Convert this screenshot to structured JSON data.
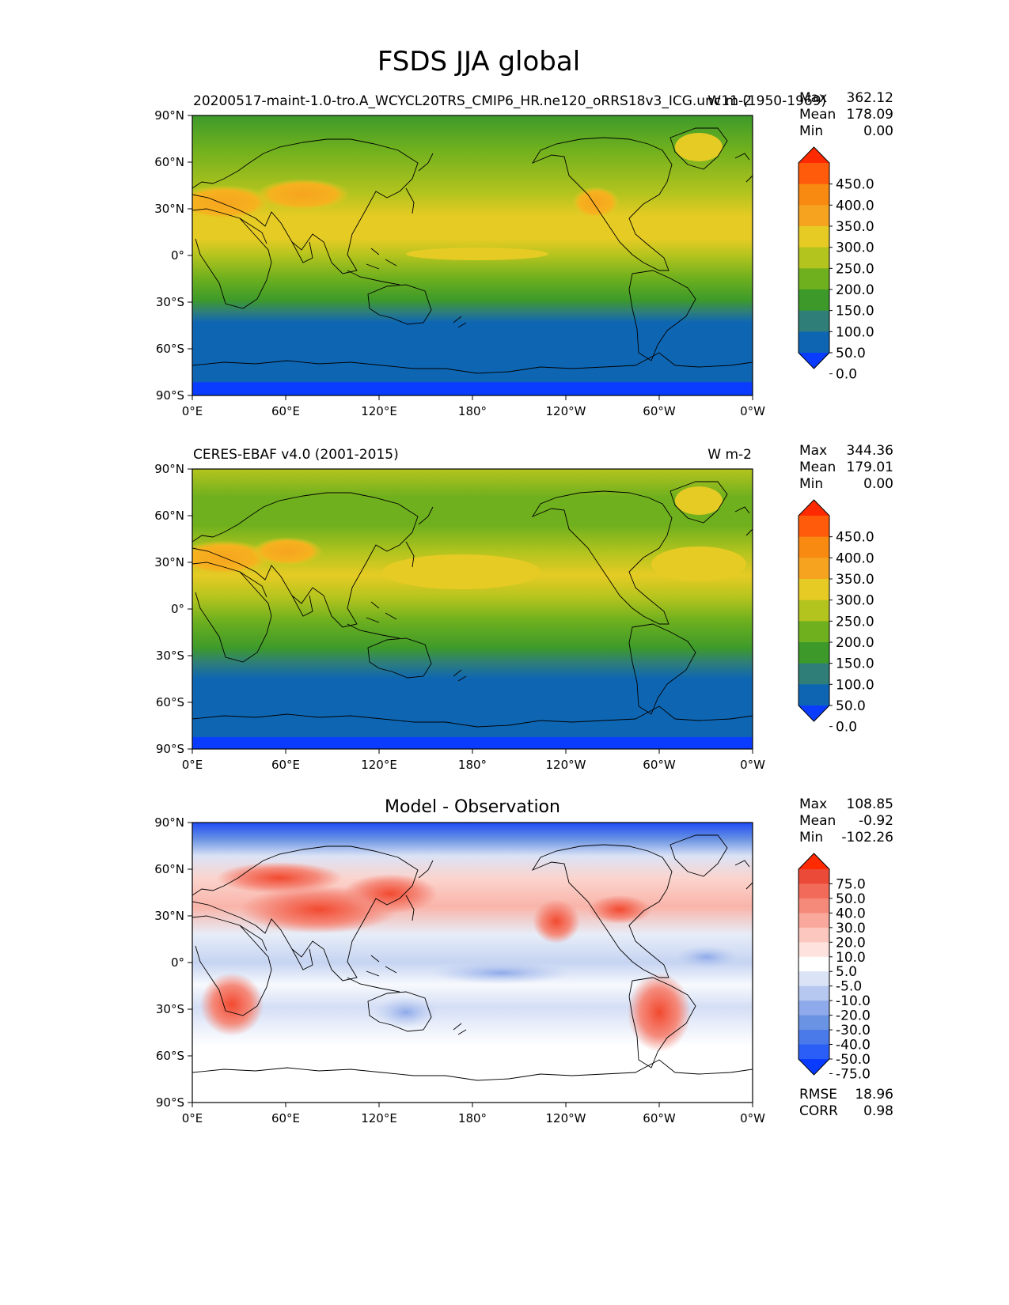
{
  "title": "FSDS JJA global",
  "x_ticks": [
    "0°E",
    "60°E",
    "120°E",
    "180°",
    "120°W",
    "60°W",
    "0°W"
  ],
  "y_ticks": [
    "90°N",
    "60°N",
    "30°N",
    "0°",
    "30°S",
    "60°S",
    "90°S"
  ],
  "panels": [
    {
      "id": "test",
      "left_title": "20200517-maint-1.0-tro.A_WCYCL20TRS_CMIP6_HR.ne120_oRRS18v3_ICG.unc11 (1950-1969)",
      "right_title": "W m-2",
      "stats": [
        [
          "Max",
          "362.12"
        ],
        [
          "Mean",
          "178.09"
        ],
        [
          "Min",
          "0.00"
        ]
      ],
      "colorbar_labels": [
        "450.0",
        "400.0",
        "350.0",
        "300.0",
        "250.0",
        "200.0",
        "150.0",
        "100.0",
        "50.0",
        "0.0"
      ]
    },
    {
      "id": "reference",
      "left_title": "CERES-EBAF v4.0 (2001-2015)",
      "right_title": "W m-2",
      "stats": [
        [
          "Max",
          "344.36"
        ],
        [
          "Mean",
          "179.01"
        ],
        [
          "Min",
          "0.00"
        ]
      ],
      "colorbar_labels": [
        "450.0",
        "400.0",
        "350.0",
        "300.0",
        "250.0",
        "200.0",
        "150.0",
        "100.0",
        "50.0",
        "0.0"
      ]
    },
    {
      "id": "difference",
      "center_title": "Model - Observation",
      "stats": [
        [
          "Max",
          "108.85"
        ],
        [
          "Mean",
          "-0.92"
        ],
        [
          "Min",
          "-102.26"
        ]
      ],
      "colorbar_labels": [
        "75.0",
        "50.0",
        "40.0",
        "30.0",
        "20.0",
        "10.0",
        "5.0",
        "-5.0",
        "-10.0",
        "-20.0",
        "-30.0",
        "-40.0",
        "-50.0",
        "-75.0"
      ],
      "metrics": [
        [
          "RMSE",
          "18.96"
        ],
        [
          "CORR",
          "0.98"
        ]
      ]
    }
  ],
  "colors": {
    "field_scale": [
      "#0a3cff",
      "#0e66b3",
      "#2f7f78",
      "#3d9a2a",
      "#6fb01e",
      "#b4c41e",
      "#e6cb24",
      "#f6a41f",
      "#f98a11",
      "#ff5b0a",
      "#ff2a00"
    ],
    "diff_scale": [
      "#0a3cff",
      "#2a5ef6",
      "#4a7ae9",
      "#6a93e3",
      "#8eaaea",
      "#b7c8f0",
      "#dbe3f6",
      "#ffffff",
      "#fde2de",
      "#fcc7bf",
      "#f9a89b",
      "#f58a7b",
      "#f16a5a",
      "#ec4a39",
      "#ff2a00"
    ]
  }
}
